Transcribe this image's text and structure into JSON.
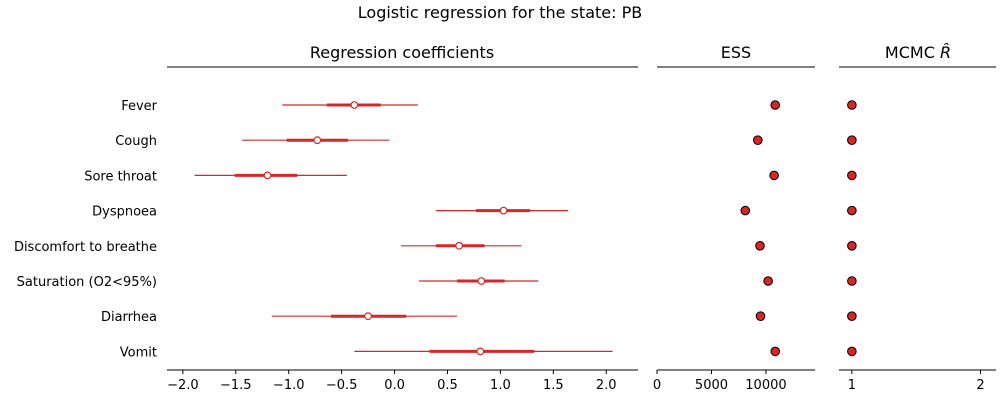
{
  "chart_data": {
    "type": "forest",
    "title": "Logistic regression for the state: PB",
    "categories": [
      "Fever",
      "Cough",
      "Sore throat",
      "Dyspnoea",
      "Discomfort to breathe",
      "Saturation (O2<95%)",
      "Diarrhea",
      "Vomit"
    ],
    "panels": [
      {
        "title": "Regression coefficients",
        "xlim": [
          -2.15,
          2.3
        ],
        "xticks": [
          "−2.0",
          "−1.5",
          "−1.0",
          "−0.5",
          "0.0",
          "0.5",
          "1.0",
          "1.5",
          "2.0"
        ],
        "xtick_values": [
          -2.0,
          -1.5,
          -1.0,
          -0.5,
          0.0,
          0.5,
          1.0,
          1.5,
          2.0
        ],
        "series": [
          {
            "category": "Fever",
            "mean": -0.38,
            "hdi_low": -1.06,
            "hdi_high": 0.22,
            "iqr_low": -0.64,
            "iqr_high": -0.13
          },
          {
            "category": "Cough",
            "mean": -0.73,
            "hdi_low": -1.44,
            "hdi_high": -0.05,
            "iqr_low": -1.02,
            "iqr_high": -0.44
          },
          {
            "category": "Sore throat",
            "mean": -1.2,
            "hdi_low": -1.89,
            "hdi_high": -0.45,
            "iqr_low": -1.51,
            "iqr_high": -0.92
          },
          {
            "category": "Dyspnoea",
            "mean": 1.03,
            "hdi_low": 0.39,
            "hdi_high": 1.64,
            "iqr_low": 0.77,
            "iqr_high": 1.28
          },
          {
            "category": "Discomfort to breathe",
            "mean": 0.61,
            "hdi_low": 0.06,
            "hdi_high": 1.2,
            "iqr_low": 0.39,
            "iqr_high": 0.85
          },
          {
            "category": "Saturation (O2<95%)",
            "mean": 0.82,
            "hdi_low": 0.23,
            "hdi_high": 1.36,
            "iqr_low": 0.59,
            "iqr_high": 1.04
          },
          {
            "category": "Diarrhea",
            "mean": -0.25,
            "hdi_low": -1.16,
            "hdi_high": 0.59,
            "iqr_low": -0.6,
            "iqr_high": 0.11
          },
          {
            "category": "Vomit",
            "mean": 0.81,
            "hdi_low": -0.38,
            "hdi_high": 2.06,
            "iqr_low": 0.33,
            "iqr_high": 1.32
          }
        ]
      },
      {
        "title": "ESS",
        "xlim": [
          0,
          14500
        ],
        "xticks": [
          "0",
          "5000",
          "10000"
        ],
        "xtick_values": [
          0,
          5000,
          10000
        ],
        "values": [
          10850,
          9250,
          10750,
          8100,
          9450,
          10200,
          9500,
          10850
        ]
      },
      {
        "title_text": "MCMC ",
        "title_symbol": "R̂",
        "xlim": [
          0.9,
          2.12
        ],
        "xticks": [
          "1",
          "2"
        ],
        "xtick_values": [
          1,
          2
        ],
        "values": [
          1.0,
          1.0,
          1.0,
          1.0,
          1.0,
          1.0,
          1.0,
          1.0
        ]
      }
    ],
    "colors": {
      "interval": "#d62728",
      "point_fill": "#d62728",
      "point_edge": "#000000",
      "mean_fill": "#ffffff"
    }
  }
}
